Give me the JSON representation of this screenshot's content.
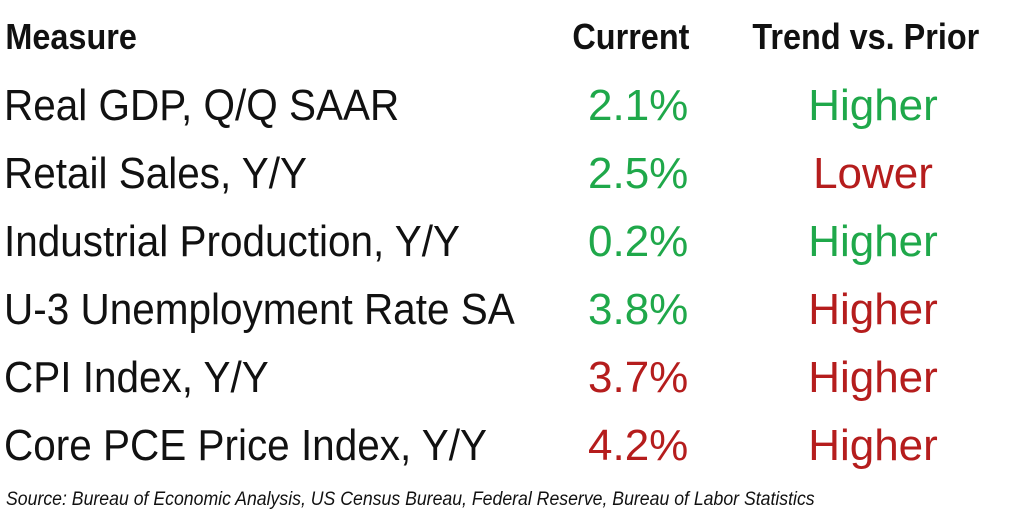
{
  "chart_data": {
    "type": "table",
    "columns": [
      "Measure",
      "Current",
      "Trend vs. Prior"
    ],
    "rows": [
      {
        "measure": "Real GDP, Q/Q SAAR",
        "current": "2.1%",
        "trend": "Higher",
        "current_color": "#1fa84a",
        "trend_color": "#1fa84a"
      },
      {
        "measure": "Retail Sales, Y/Y",
        "current": "2.5%",
        "trend": "Lower",
        "current_color": "#1fa84a",
        "trend_color": "#b51d1d"
      },
      {
        "measure": "Industrial Production, Y/Y",
        "current": "0.2%",
        "trend": "Higher",
        "current_color": "#1fa84a",
        "trend_color": "#1fa84a"
      },
      {
        "measure": "U-3 Unemployment Rate SA",
        "current": "3.8%",
        "trend": "Higher",
        "current_color": "#1fa84a",
        "trend_color": "#b51d1d"
      },
      {
        "measure": "CPI Index, Y/Y",
        "current": "3.7%",
        "trend": "Higher",
        "current_color": "#b51d1d",
        "trend_color": "#b51d1d"
      },
      {
        "measure": "Core PCE Price Index, Y/Y",
        "current": "4.2%",
        "trend": "Higher",
        "current_color": "#b51d1d",
        "trend_color": "#b51d1d"
      }
    ],
    "source": "Source: Bureau of Economic Analysis, US Census Bureau, Federal Reserve, Bureau of Labor Statistics"
  },
  "colors": {
    "positive": "#1fa84a",
    "negative": "#b51d1d"
  }
}
